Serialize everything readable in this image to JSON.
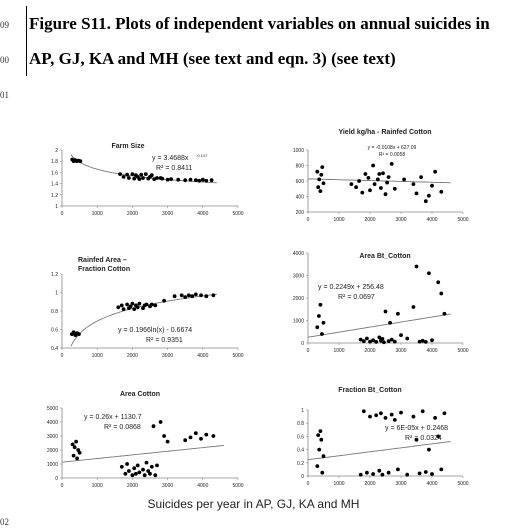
{
  "document": {
    "line_numbers": [
      "09",
      "00",
      "01",
      "02"
    ],
    "caption": "Figure S11. Plots of independent variables on annual suicides in AP, GJ, KA and MH (see text and eqn. 3) (see text)",
    "x_axis_caption": "Suicides per year in AP, GJ, KA and MH"
  },
  "chart_data": [
    {
      "type": "scatter",
      "title": "Farm Size",
      "xticks": [
        "0",
        "1000",
        "2000",
        "3000",
        "4000",
        "5000"
      ],
      "yticks": [
        "1",
        "1.2",
        "1.4",
        "1.6",
        "1.8",
        "2"
      ],
      "xlim": [
        0,
        5000
      ],
      "ylim": [
        1,
        2
      ],
      "trend": "power",
      "trend_params": [
        3.4688,
        -0.107
      ],
      "equation": [
        "y = 3.4688x",
        "-0.107",
        "R² = 0.8411"
      ],
      "points": [
        [
          290,
          1.83
        ],
        [
          330,
          1.8
        ],
        [
          380,
          1.82
        ],
        [
          420,
          1.8
        ],
        [
          470,
          1.81
        ],
        [
          520,
          1.8
        ],
        [
          1650,
          1.57
        ],
        [
          1750,
          1.52
        ],
        [
          1850,
          1.56
        ],
        [
          1900,
          1.5
        ],
        [
          2000,
          1.57
        ],
        [
          2050,
          1.49
        ],
        [
          2100,
          1.55
        ],
        [
          2150,
          1.52
        ],
        [
          2200,
          1.48
        ],
        [
          2250,
          1.56
        ],
        [
          2300,
          1.5
        ],
        [
          2380,
          1.57
        ],
        [
          2450,
          1.49
        ],
        [
          2500,
          1.52
        ],
        [
          2550,
          1.55
        ],
        [
          2620,
          1.48
        ],
        [
          2700,
          1.5
        ],
        [
          2800,
          1.5
        ],
        [
          2850,
          1.49
        ],
        [
          3000,
          1.47
        ],
        [
          3100,
          1.48
        ],
        [
          3300,
          1.47
        ],
        [
          3500,
          1.46
        ],
        [
          3650,
          1.47
        ],
        [
          3800,
          1.46
        ],
        [
          3900,
          1.45
        ],
        [
          4000,
          1.47
        ],
        [
          4100,
          1.45
        ],
        [
          4250,
          1.46
        ]
      ]
    },
    {
      "type": "scatter",
      "title": "Yield kg/ha - Rainfed Cotton",
      "xticks": [
        "0",
        "1000",
        "2000",
        "3000",
        "4000",
        "5000"
      ],
      "yticks": [
        "200",
        "400",
        "600",
        "800",
        "1000"
      ],
      "xlim": [
        0,
        5000
      ],
      "ylim": [
        200,
        1000
      ],
      "trend": "linear",
      "trend_params": [
        -0.0108,
        627.09
      ],
      "equation": [
        "y = -0.0108x + 627.09",
        "R² = 0.0058"
      ],
      "points": [
        [
          300,
          720
        ],
        [
          330,
          520
        ],
        [
          360,
          620
        ],
        [
          400,
          470
        ],
        [
          430,
          680
        ],
        [
          460,
          780
        ],
        [
          500,
          570
        ],
        [
          1400,
          560
        ],
        [
          1550,
          520
        ],
        [
          1650,
          600
        ],
        [
          1750,
          450
        ],
        [
          1850,
          690
        ],
        [
          1950,
          640
        ],
        [
          2000,
          480
        ],
        [
          2100,
          800
        ],
        [
          2150,
          560
        ],
        [
          2250,
          620
        ],
        [
          2300,
          690
        ],
        [
          2350,
          510
        ],
        [
          2420,
          700
        ],
        [
          2500,
          430
        ],
        [
          2550,
          580
        ],
        [
          2600,
          650
        ],
        [
          2700,
          820
        ],
        [
          2800,
          500
        ],
        [
          3100,
          620
        ],
        [
          3400,
          560
        ],
        [
          3500,
          440
        ],
        [
          3650,
          650
        ],
        [
          3800,
          340
        ],
        [
          3900,
          410
        ],
        [
          4000,
          540
        ],
        [
          4100,
          720
        ],
        [
          4300,
          460
        ]
      ]
    },
    {
      "type": "scatter",
      "title": "Rainfed Area – Fraction Cotton",
      "xticks": [
        "0",
        "1000",
        "2000",
        "3000",
        "4000",
        "5000"
      ],
      "yticks": [
        "0.4",
        "0.6",
        "0.8",
        "1",
        "1.2"
      ],
      "xlim": [
        0,
        5000
      ],
      "ylim": [
        0.4,
        1.2
      ],
      "trend": "log",
      "trend_params": [
        0.1966,
        -0.6674
      ],
      "equation": [
        "y = 0.1966ln(x) - 0.6674",
        "R² = 0.9351"
      ],
      "points": [
        [
          280,
          0.55
        ],
        [
          330,
          0.57
        ],
        [
          380,
          0.54
        ],
        [
          430,
          0.56
        ],
        [
          480,
          0.55
        ],
        [
          1600,
          0.84
        ],
        [
          1700,
          0.86
        ],
        [
          1750,
          0.82
        ],
        [
          1850,
          0.87
        ],
        [
          1900,
          0.83
        ],
        [
          1950,
          0.85
        ],
        [
          2000,
          0.88
        ],
        [
          2050,
          0.82
        ],
        [
          2100,
          0.86
        ],
        [
          2150,
          0.84
        ],
        [
          2200,
          0.88
        ],
        [
          2300,
          0.83
        ],
        [
          2350,
          0.86
        ],
        [
          2400,
          0.87
        ],
        [
          2500,
          0.85
        ],
        [
          2550,
          0.87
        ],
        [
          2650,
          0.86
        ],
        [
          2900,
          0.91
        ],
        [
          3200,
          0.96
        ],
        [
          3400,
          0.97
        ],
        [
          3500,
          0.95
        ],
        [
          3600,
          0.97
        ],
        [
          3700,
          0.96
        ],
        [
          3800,
          0.98
        ],
        [
          3950,
          0.97
        ],
        [
          4100,
          0.96
        ],
        [
          4300,
          0.97
        ]
      ]
    },
    {
      "type": "scatter",
      "title": "Area Bt_Cotton",
      "xticks": [
        "0",
        "1000",
        "2000",
        "3000",
        "4000",
        "5000"
      ],
      "yticks": [
        "0",
        "1000",
        "2000",
        "3000",
        "4000"
      ],
      "xlim": [
        0,
        5000
      ],
      "ylim": [
        0,
        4000
      ],
      "trend": "linear",
      "trend_params": [
        0.2249,
        256.48
      ],
      "equation": [
        "y = 0.2249x + 256.48",
        "R² = 0.0697"
      ],
      "points": [
        [
          300,
          700
        ],
        [
          350,
          1200
        ],
        [
          400,
          1700
        ],
        [
          450,
          400
        ],
        [
          500,
          900
        ],
        [
          1700,
          150
        ],
        [
          1800,
          80
        ],
        [
          1900,
          200
        ],
        [
          2000,
          60
        ],
        [
          2100,
          120
        ],
        [
          2200,
          50
        ],
        [
          2300,
          250
        ],
        [
          2350,
          100
        ],
        [
          2400,
          180
        ],
        [
          2450,
          30
        ],
        [
          2500,
          1400
        ],
        [
          2600,
          80
        ],
        [
          2650,
          900
        ],
        [
          2700,
          150
        ],
        [
          2900,
          1300
        ],
        [
          2800,
          60
        ],
        [
          3000,
          350
        ],
        [
          3200,
          200
        ],
        [
          3400,
          1600
        ],
        [
          3600,
          60
        ],
        [
          3700,
          100
        ],
        [
          3800,
          50
        ],
        [
          3900,
          3100
        ],
        [
          4000,
          120
        ],
        [
          4200,
          2700
        ],
        [
          4300,
          2200
        ],
        [
          4400,
          1300
        ],
        [
          3500,
          3400
        ]
      ]
    },
    {
      "type": "scatter",
      "title": "Area Cotton",
      "xticks": [
        "0",
        "1000",
        "2000",
        "3000",
        "4000",
        "5000"
      ],
      "yticks": [
        "0",
        "1000",
        "2000",
        "3000",
        "4000",
        "5000"
      ],
      "xlim": [
        0,
        5000
      ],
      "ylim": [
        0,
        5000
      ],
      "trend": "linear",
      "trend_params": [
        0.26,
        1130.7
      ],
      "equation": [
        "y = 0.26x + 1130.7",
        "R² = 0.0868"
      ],
      "points": [
        [
          300,
          2400
        ],
        [
          330,
          1600
        ],
        [
          360,
          2200
        ],
        [
          400,
          2600
        ],
        [
          430,
          1400
        ],
        [
          460,
          2000
        ],
        [
          500,
          1800
        ],
        [
          1700,
          800
        ],
        [
          1800,
          300
        ],
        [
          1850,
          1000
        ],
        [
          1900,
          500
        ],
        [
          2000,
          200
        ],
        [
          2050,
          700
        ],
        [
          2100,
          300
        ],
        [
          2150,
          900
        ],
        [
          2200,
          400
        ],
        [
          2300,
          600
        ],
        [
          2350,
          200
        ],
        [
          2400,
          1100
        ],
        [
          2450,
          500
        ],
        [
          2500,
          300
        ],
        [
          2550,
          800
        ],
        [
          2600,
          3700
        ],
        [
          2650,
          200
        ],
        [
          2700,
          900
        ],
        [
          2800,
          4000
        ],
        [
          2900,
          3000
        ],
        [
          3000,
          2600
        ],
        [
          3500,
          2700
        ],
        [
          3650,
          2900
        ],
        [
          3800,
          3200
        ],
        [
          3950,
          2800
        ],
        [
          4100,
          3100
        ],
        [
          4300,
          3000
        ]
      ]
    },
    {
      "type": "scatter",
      "title": "Fraction Bt_Cotton",
      "xticks": [
        "0",
        "1000",
        "2000",
        "3000",
        "4000",
        "5000"
      ],
      "yticks": [
        "0",
        "0.2",
        "0.4",
        "0.6",
        "0.8",
        "1"
      ],
      "xlim": [
        0,
        5000
      ],
      "ylim": [
        0,
        1
      ],
      "trend": "linear",
      "trend_params": [
        6e-05,
        0.2468
      ],
      "equation": [
        "y = 6E-05x + 0.2468",
        "R² = 0.0324"
      ],
      "points": [
        [
          300,
          0.15
        ],
        [
          330,
          0.62
        ],
        [
          360,
          0.4
        ],
        [
          400,
          0.68
        ],
        [
          430,
          0.55
        ],
        [
          460,
          0.05
        ],
        [
          500,
          0.3
        ],
        [
          1700,
          0.02
        ],
        [
          1800,
          0.98
        ],
        [
          1900,
          0.05
        ],
        [
          2000,
          0.9
        ],
        [
          2100,
          0.03
        ],
        [
          2200,
          0.92
        ],
        [
          2300,
          0.08
        ],
        [
          2350,
          0.95
        ],
        [
          2400,
          0.02
        ],
        [
          2500,
          0.88
        ],
        [
          2600,
          0.05
        ],
        [
          2700,
          0.93
        ],
        [
          2800,
          0.85
        ],
        [
          2900,
          0.1
        ],
        [
          3000,
          0.96
        ],
        [
          3200,
          0.02
        ],
        [
          3400,
          0.9
        ],
        [
          3500,
          0.55
        ],
        [
          3600,
          0.04
        ],
        [
          3700,
          0.98
        ],
        [
          3800,
          0.06
        ],
        [
          3900,
          0.4
        ],
        [
          4000,
          0.03
        ],
        [
          4100,
          0.88
        ],
        [
          4200,
          0.6
        ],
        [
          4300,
          0.1
        ],
        [
          4400,
          0.95
        ]
      ]
    }
  ]
}
